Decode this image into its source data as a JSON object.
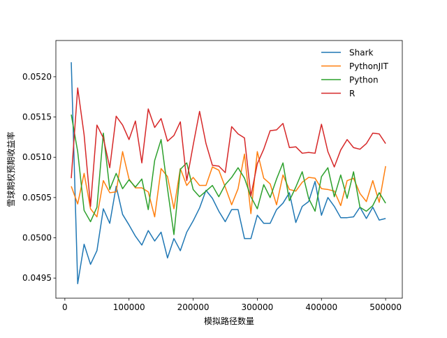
{
  "chart_data": {
    "type": "line",
    "title": "",
    "xlabel": "模拟路径数量",
    "ylabel": "雪球期权预期收益率",
    "xlim": [
      -14000,
      526000
    ],
    "ylim": [
      0.04925,
      0.05245
    ],
    "x_ticks": [
      0,
      100000,
      200000,
      300000,
      400000,
      500000
    ],
    "x_tick_labels": [
      "0",
      "100000",
      "200000",
      "300000",
      "400000",
      "500000"
    ],
    "y_ticks": [
      0.0495,
      0.05,
      0.0505,
      0.051,
      0.0515,
      0.052
    ],
    "y_tick_labels": [
      "0.0495",
      "0.0500",
      "0.0505",
      "0.0510",
      "0.0515",
      "0.0520"
    ],
    "grid": false,
    "legend_position": "top-right",
    "x": [
      10000,
      20000,
      30000,
      40000,
      50000,
      60000,
      70000,
      80000,
      90000,
      100000,
      110000,
      120000,
      130000,
      140000,
      150000,
      160000,
      170000,
      180000,
      190000,
      200000,
      210000,
      220000,
      230000,
      240000,
      250000,
      260000,
      270000,
      280000,
      290000,
      300000,
      310000,
      320000,
      330000,
      340000,
      350000,
      360000,
      370000,
      380000,
      390000,
      400000,
      410000,
      420000,
      430000,
      440000,
      450000,
      460000,
      470000,
      480000,
      490000,
      500000
    ],
    "series": [
      {
        "name": "Shark",
        "color": "#1f77b4",
        "values": [
          0.05218,
          0.04943,
          0.04992,
          0.04967,
          0.04984,
          0.05036,
          0.05018,
          0.05064,
          0.05029,
          0.05016,
          0.05002,
          0.04991,
          0.05009,
          0.04996,
          0.05007,
          0.04975,
          0.04999,
          0.04984,
          0.05007,
          0.05021,
          0.05037,
          0.05059,
          0.05049,
          0.05033,
          0.0502,
          0.05035,
          0.05035,
          0.04999,
          0.04999,
          0.05028,
          0.05018,
          0.05018,
          0.05035,
          0.05043,
          0.05056,
          0.05019,
          0.05039,
          0.05045,
          0.0507,
          0.05028,
          0.0505,
          0.05039,
          0.05025,
          0.05025,
          0.05026,
          0.05038,
          0.05024,
          0.05038,
          0.05022,
          0.05024
        ]
      },
      {
        "name": "PythonJIT",
        "color": "#ff7f0e",
        "values": [
          0.05064,
          0.05042,
          0.0508,
          0.05036,
          0.05026,
          0.05071,
          0.05056,
          0.05057,
          0.05107,
          0.05073,
          0.05062,
          0.05062,
          0.05057,
          0.05026,
          0.05086,
          0.05076,
          0.05036,
          0.05086,
          0.05065,
          0.05075,
          0.05065,
          0.05065,
          0.05088,
          0.05084,
          0.05063,
          0.05041,
          0.05061,
          0.05104,
          0.0503,
          0.05107,
          0.05074,
          0.05067,
          0.05041,
          0.05078,
          0.0506,
          0.05058,
          0.05069,
          0.05075,
          0.05074,
          0.05061,
          0.0506,
          0.05058,
          0.0504,
          0.05071,
          0.05074,
          0.05055,
          0.05045,
          0.05071,
          0.05044,
          0.05089
        ]
      },
      {
        "name": "Python",
        "color": "#2ca02c",
        "values": [
          0.05153,
          0.05107,
          0.05034,
          0.0502,
          0.05038,
          0.0513,
          0.0506,
          0.0508,
          0.05061,
          0.05072,
          0.05063,
          0.05073,
          0.05035,
          0.05096,
          0.05122,
          0.05061,
          0.05004,
          0.05085,
          0.05093,
          0.0506,
          0.05051,
          0.05058,
          0.05065,
          0.05051,
          0.05066,
          0.05075,
          0.05087,
          0.05074,
          0.05051,
          0.05036,
          0.05066,
          0.0505,
          0.05073,
          0.05093,
          0.05046,
          0.05063,
          0.05082,
          0.05049,
          0.05033,
          0.05076,
          0.05087,
          0.05051,
          0.05078,
          0.05049,
          0.05082,
          0.05038,
          0.05033,
          0.0504,
          0.05056,
          0.05043
        ]
      },
      {
        "name": "R",
        "color": "#d62728",
        "values": [
          0.05074,
          0.05186,
          0.05128,
          0.05039,
          0.0514,
          0.05124,
          0.05087,
          0.05151,
          0.0514,
          0.05122,
          0.05145,
          0.05093,
          0.0516,
          0.05137,
          0.05148,
          0.0512,
          0.05127,
          0.05144,
          0.05071,
          0.05115,
          0.05157,
          0.05117,
          0.0509,
          0.05089,
          0.05081,
          0.05138,
          0.05129,
          0.05124,
          0.05052,
          0.05092,
          0.0511,
          0.05133,
          0.05134,
          0.05142,
          0.05112,
          0.05113,
          0.05105,
          0.05106,
          0.05105,
          0.05141,
          0.05107,
          0.05088,
          0.05109,
          0.05122,
          0.05112,
          0.0511,
          0.05117,
          0.0513,
          0.05129,
          0.05117
        ]
      }
    ]
  }
}
